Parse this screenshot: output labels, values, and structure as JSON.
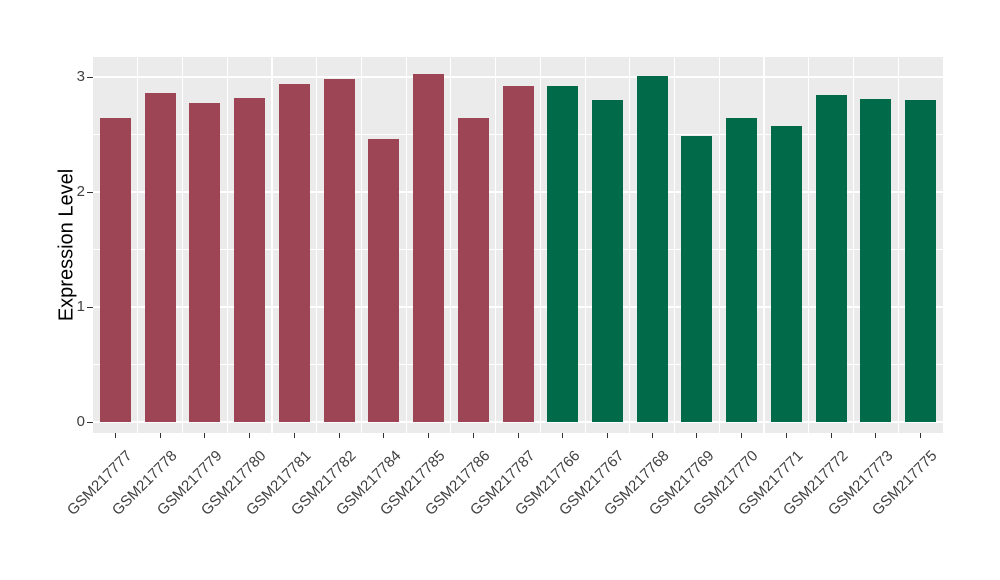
{
  "chart_data": {
    "type": "bar",
    "title": "",
    "xlabel": "",
    "ylabel": "Expression Level",
    "categories": [
      "GSM217777",
      "GSM217778",
      "GSM217779",
      "GSM217780",
      "GSM217781",
      "GSM217782",
      "GSM217784",
      "GSM217785",
      "GSM217786",
      "GSM217787",
      "GSM217766",
      "GSM217767",
      "GSM217768",
      "GSM217769",
      "GSM217770",
      "GSM217771",
      "GSM217772",
      "GSM217773",
      "GSM217775"
    ],
    "values": [
      2.64,
      2.86,
      2.77,
      2.82,
      2.94,
      2.98,
      2.46,
      3.03,
      2.64,
      2.92,
      2.92,
      2.8,
      3.01,
      2.49,
      2.64,
      2.57,
      2.84,
      2.81,
      2.8
    ],
    "bar_colors": [
      "#9D4554",
      "#9D4554",
      "#9D4554",
      "#9D4554",
      "#9D4554",
      "#9D4554",
      "#9D4554",
      "#9D4554",
      "#9D4554",
      "#9D4554",
      "#006A49",
      "#006A49",
      "#006A49",
      "#006A49",
      "#006A49",
      "#006A49",
      "#006A49",
      "#006A49",
      "#006A49"
    ],
    "y_ticks": [
      "0",
      "1",
      "2",
      "3"
    ],
    "y_tick_values": [
      0,
      1,
      2,
      3
    ],
    "y_minor_values": [
      0.5,
      1.5,
      2.5
    ],
    "ylim": [
      0,
      3.17
    ],
    "grid": "major and minor white gridlines on grey panel",
    "legend_position": "none",
    "x_label_rotation_deg": 45,
    "colors": {
      "bar_group_left": "#9D4554",
      "bar_group_right": "#006A49",
      "panel_background": "#EBEBEB",
      "gridline": "#FFFFFF",
      "axis_text": "#404040",
      "axis_title": "#000000",
      "tick_mark": "#333333",
      "figure_background": "#FFFFFF"
    }
  }
}
